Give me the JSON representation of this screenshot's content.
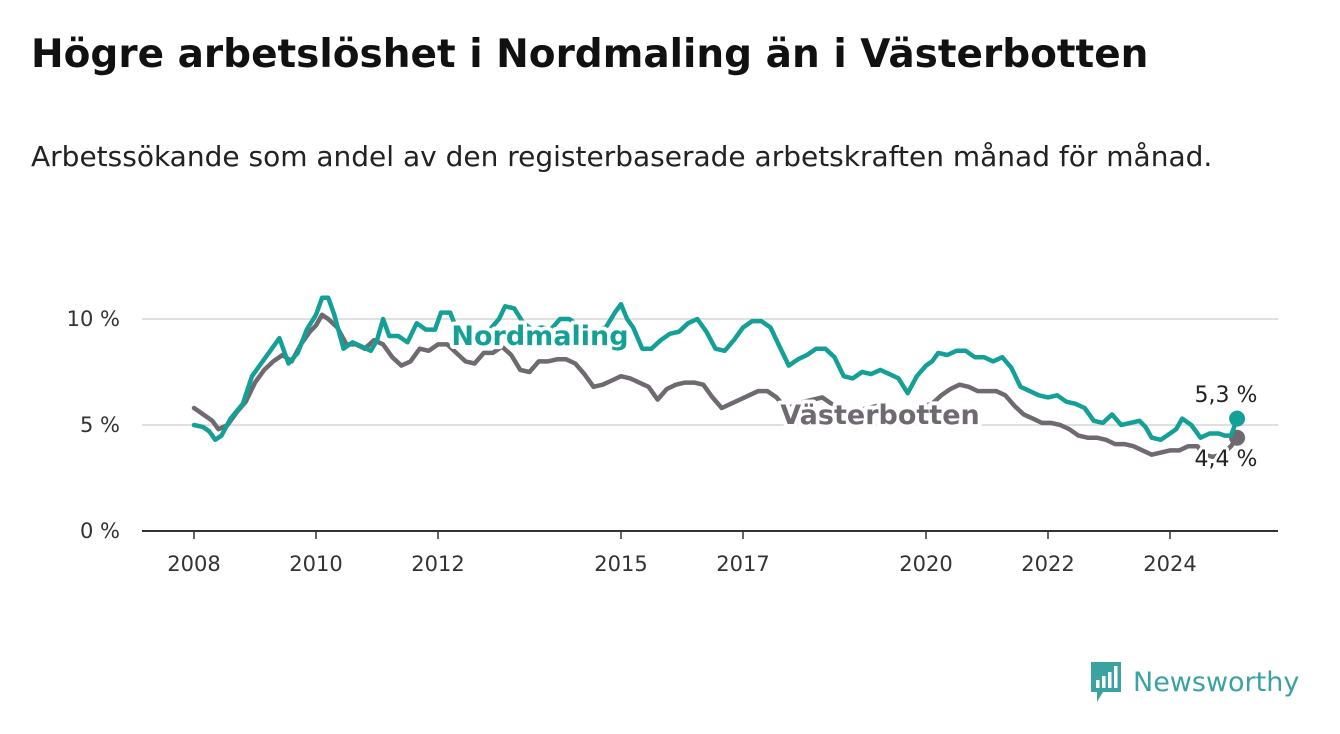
{
  "header": {
    "title": "Högre arbetslöshet i Nordmaling än i Västerbotten",
    "subtitle": "Arbetssökande som andel av den registerbaserade arbetskraften månad för månad."
  },
  "brand": {
    "name": "Newsworthy",
    "icon": "bar-chart-icon",
    "color": "#3aa3a1"
  },
  "chart_data": {
    "type": "line",
    "title": "Högre arbetslöshet i Nordmaling än i Västerbotten",
    "subtitle": "Arbetssökande som andel av den registerbaserade arbetskraften månad för månad.",
    "x_ticks": [
      {
        "value": 2008,
        "label": "2008"
      },
      {
        "value": 2010,
        "label": "2010"
      },
      {
        "value": 2012,
        "label": "2012"
      },
      {
        "value": 2015,
        "label": "2015"
      },
      {
        "value": 2017,
        "label": "2017"
      },
      {
        "value": 2020,
        "label": "2020"
      },
      {
        "value": 2022,
        "label": "2022"
      },
      {
        "value": 2024,
        "label": "2024"
      }
    ],
    "y_ticks": [
      {
        "value": 0,
        "label": "0 %"
      },
      {
        "value": 5,
        "label": "5 %"
      },
      {
        "value": 10,
        "label": "10 %"
      }
    ],
    "xlim": [
      2007.2,
      2025.75
    ],
    "ylim": [
      0,
      10.5
    ],
    "grid": "horizontal",
    "series": [
      {
        "name": "Nordmaling",
        "color": "#14a096",
        "end_label": "5,3 %",
        "end_value": 5.3,
        "points": [
          [
            2008.0,
            5.0
          ],
          [
            2008.15,
            4.9
          ],
          [
            2008.25,
            4.7
          ],
          [
            2008.35,
            4.3
          ],
          [
            2008.45,
            4.5
          ],
          [
            2008.6,
            5.3
          ],
          [
            2008.8,
            6.0
          ],
          [
            2008.95,
            7.3
          ],
          [
            2009.1,
            7.9
          ],
          [
            2009.25,
            8.5
          ],
          [
            2009.4,
            9.1
          ],
          [
            2009.55,
            7.9
          ],
          [
            2009.7,
            8.4
          ],
          [
            2009.85,
            9.5
          ],
          [
            2010.0,
            10.2
          ],
          [
            2010.1,
            11.0
          ],
          [
            2010.2,
            11.0
          ],
          [
            2010.3,
            10.2
          ],
          [
            2010.45,
            8.6
          ],
          [
            2010.6,
            8.9
          ],
          [
            2010.75,
            8.7
          ],
          [
            2010.9,
            8.5
          ],
          [
            2011.0,
            9.0
          ],
          [
            2011.1,
            10.0
          ],
          [
            2011.2,
            9.2
          ],
          [
            2011.35,
            9.2
          ],
          [
            2011.5,
            8.9
          ],
          [
            2011.65,
            9.8
          ],
          [
            2011.8,
            9.5
          ],
          [
            2011.95,
            9.5
          ],
          [
            2012.05,
            10.3
          ],
          [
            2012.2,
            10.3
          ],
          [
            2012.35,
            9.2
          ],
          [
            2012.5,
            8.8
          ],
          [
            2012.7,
            9.1
          ],
          [
            2012.85,
            9.5
          ],
          [
            2013.0,
            10.0
          ],
          [
            2013.1,
            10.6
          ],
          [
            2013.25,
            10.5
          ],
          [
            2013.4,
            9.8
          ],
          [
            2013.55,
            9.5
          ],
          [
            2013.7,
            9.6
          ],
          [
            2013.85,
            9.5
          ],
          [
            2014.0,
            10.0
          ],
          [
            2014.15,
            10.0
          ],
          [
            2014.3,
            9.7
          ],
          [
            2014.45,
            9.2
          ],
          [
            2014.6,
            9.5
          ],
          [
            2014.75,
            9.6
          ],
          [
            2014.9,
            10.3
          ],
          [
            2015.0,
            10.7
          ],
          [
            2015.1,
            10.0
          ],
          [
            2015.2,
            9.6
          ],
          [
            2015.35,
            8.6
          ],
          [
            2015.5,
            8.6
          ],
          [
            2015.65,
            9.0
          ],
          [
            2015.8,
            9.3
          ],
          [
            2015.95,
            9.4
          ],
          [
            2016.1,
            9.8
          ],
          [
            2016.25,
            10.0
          ],
          [
            2016.4,
            9.4
          ],
          [
            2016.55,
            8.6
          ],
          [
            2016.7,
            8.5
          ],
          [
            2016.85,
            9.0
          ],
          [
            2017.0,
            9.6
          ],
          [
            2017.15,
            9.9
          ],
          [
            2017.3,
            9.9
          ],
          [
            2017.45,
            9.6
          ],
          [
            2017.6,
            8.7
          ],
          [
            2017.75,
            7.8
          ],
          [
            2017.9,
            8.1
          ],
          [
            2018.05,
            8.3
          ],
          [
            2018.2,
            8.6
          ],
          [
            2018.35,
            8.6
          ],
          [
            2018.5,
            8.2
          ],
          [
            2018.65,
            7.3
          ],
          [
            2018.8,
            7.2
          ],
          [
            2018.95,
            7.5
          ],
          [
            2019.1,
            7.4
          ],
          [
            2019.25,
            7.6
          ],
          [
            2019.4,
            7.4
          ],
          [
            2019.55,
            7.2
          ],
          [
            2019.7,
            6.5
          ],
          [
            2019.85,
            7.3
          ],
          [
            2020.0,
            7.8
          ],
          [
            2020.1,
            8.0
          ],
          [
            2020.2,
            8.4
          ],
          [
            2020.35,
            8.3
          ],
          [
            2020.5,
            8.5
          ],
          [
            2020.65,
            8.5
          ],
          [
            2020.8,
            8.2
          ],
          [
            2020.95,
            8.2
          ],
          [
            2021.1,
            8.0
          ],
          [
            2021.25,
            8.2
          ],
          [
            2021.4,
            7.7
          ],
          [
            2021.55,
            6.8
          ],
          [
            2021.7,
            6.6
          ],
          [
            2021.85,
            6.4
          ],
          [
            2022.0,
            6.3
          ],
          [
            2022.15,
            6.4
          ],
          [
            2022.3,
            6.1
          ],
          [
            2022.45,
            6.0
          ],
          [
            2022.6,
            5.8
          ],
          [
            2022.75,
            5.2
          ],
          [
            2022.9,
            5.1
          ],
          [
            2023.05,
            5.5
          ],
          [
            2023.2,
            5.0
          ],
          [
            2023.35,
            5.1
          ],
          [
            2023.5,
            5.2
          ],
          [
            2023.6,
            4.9
          ],
          [
            2023.7,
            4.4
          ],
          [
            2023.85,
            4.3
          ],
          [
            2024.0,
            4.6
          ],
          [
            2024.1,
            4.8
          ],
          [
            2024.2,
            5.3
          ],
          [
            2024.35,
            5.0
          ],
          [
            2024.5,
            4.4
          ],
          [
            2024.65,
            4.6
          ],
          [
            2024.8,
            4.6
          ],
          [
            2024.9,
            4.5
          ],
          [
            2025.0,
            4.5
          ],
          [
            2025.1,
            5.3
          ]
        ]
      },
      {
        "name": "Västerbotten",
        "color": "#6e6a70",
        "end_label": "4,4 %",
        "end_value": 4.4,
        "points": [
          [
            2008.0,
            5.8
          ],
          [
            2008.15,
            5.5
          ],
          [
            2008.3,
            5.2
          ],
          [
            2008.4,
            4.8
          ],
          [
            2008.55,
            5.0
          ],
          [
            2008.7,
            5.6
          ],
          [
            2008.85,
            6.1
          ],
          [
            2009.0,
            7.0
          ],
          [
            2009.15,
            7.6
          ],
          [
            2009.3,
            8.0
          ],
          [
            2009.45,
            8.3
          ],
          [
            2009.6,
            8.0
          ],
          [
            2009.75,
            8.8
          ],
          [
            2009.9,
            9.4
          ],
          [
            2010.0,
            9.7
          ],
          [
            2010.1,
            10.2
          ],
          [
            2010.2,
            10.0
          ],
          [
            2010.35,
            9.6
          ],
          [
            2010.5,
            8.8
          ],
          [
            2010.65,
            8.8
          ],
          [
            2010.8,
            8.6
          ],
          [
            2010.95,
            9.0
          ],
          [
            2011.1,
            8.8
          ],
          [
            2011.25,
            8.2
          ],
          [
            2011.4,
            7.8
          ],
          [
            2011.55,
            8.0
          ],
          [
            2011.7,
            8.6
          ],
          [
            2011.85,
            8.5
          ],
          [
            2012.0,
            8.8
          ],
          [
            2012.15,
            8.8
          ],
          [
            2012.3,
            8.4
          ],
          [
            2012.45,
            8.0
          ],
          [
            2012.6,
            7.9
          ],
          [
            2012.75,
            8.4
          ],
          [
            2012.9,
            8.4
          ],
          [
            2013.05,
            8.7
          ],
          [
            2013.2,
            8.3
          ],
          [
            2013.35,
            7.6
          ],
          [
            2013.5,
            7.5
          ],
          [
            2013.65,
            8.0
          ],
          [
            2013.8,
            8.0
          ],
          [
            2013.95,
            8.1
          ],
          [
            2014.1,
            8.1
          ],
          [
            2014.25,
            7.9
          ],
          [
            2014.4,
            7.4
          ],
          [
            2014.55,
            6.8
          ],
          [
            2014.7,
            6.9
          ],
          [
            2014.85,
            7.1
          ],
          [
            2015.0,
            7.3
          ],
          [
            2015.15,
            7.2
          ],
          [
            2015.3,
            7.0
          ],
          [
            2015.45,
            6.8
          ],
          [
            2015.6,
            6.2
          ],
          [
            2015.75,
            6.7
          ],
          [
            2015.9,
            6.9
          ],
          [
            2016.05,
            7.0
          ],
          [
            2016.2,
            7.0
          ],
          [
            2016.35,
            6.9
          ],
          [
            2016.5,
            6.3
          ],
          [
            2016.65,
            5.8
          ],
          [
            2016.8,
            6.0
          ],
          [
            2016.95,
            6.2
          ],
          [
            2017.1,
            6.4
          ],
          [
            2017.25,
            6.6
          ],
          [
            2017.4,
            6.6
          ],
          [
            2017.55,
            6.3
          ],
          [
            2017.7,
            5.8
          ],
          [
            2017.85,
            5.9
          ],
          [
            2018.0,
            6.1
          ],
          [
            2018.15,
            6.2
          ],
          [
            2018.3,
            6.3
          ],
          [
            2018.45,
            6.0
          ],
          [
            2018.6,
            5.6
          ],
          [
            2018.75,
            5.6
          ],
          [
            2018.9,
            5.7
          ],
          [
            2019.05,
            5.8
          ],
          [
            2019.2,
            5.9
          ],
          [
            2019.35,
            5.7
          ],
          [
            2019.5,
            5.4
          ],
          [
            2019.65,
            5.3
          ],
          [
            2019.8,
            5.6
          ],
          [
            2019.95,
            5.9
          ],
          [
            2020.1,
            6.0
          ],
          [
            2020.25,
            6.4
          ],
          [
            2020.4,
            6.7
          ],
          [
            2020.55,
            6.9
          ],
          [
            2020.7,
            6.8
          ],
          [
            2020.85,
            6.6
          ],
          [
            2021.0,
            6.6
          ],
          [
            2021.15,
            6.6
          ],
          [
            2021.3,
            6.4
          ],
          [
            2021.45,
            5.9
          ],
          [
            2021.6,
            5.5
          ],
          [
            2021.75,
            5.3
          ],
          [
            2021.9,
            5.1
          ],
          [
            2022.05,
            5.1
          ],
          [
            2022.2,
            5.0
          ],
          [
            2022.35,
            4.8
          ],
          [
            2022.5,
            4.5
          ],
          [
            2022.65,
            4.4
          ],
          [
            2022.8,
            4.4
          ],
          [
            2022.95,
            4.3
          ],
          [
            2023.1,
            4.1
          ],
          [
            2023.25,
            4.1
          ],
          [
            2023.4,
            4.0
          ],
          [
            2023.55,
            3.8
          ],
          [
            2023.7,
            3.6
          ],
          [
            2023.85,
            3.7
          ],
          [
            2024.0,
            3.8
          ],
          [
            2024.15,
            3.8
          ],
          [
            2024.3,
            4.0
          ],
          [
            2024.45,
            4.0
          ],
          [
            2024.55,
            3.6
          ],
          [
            2024.7,
            3.5
          ],
          [
            2024.85,
            3.6
          ],
          [
            2025.0,
            4.0
          ],
          [
            2025.1,
            4.4
          ]
        ]
      }
    ]
  }
}
